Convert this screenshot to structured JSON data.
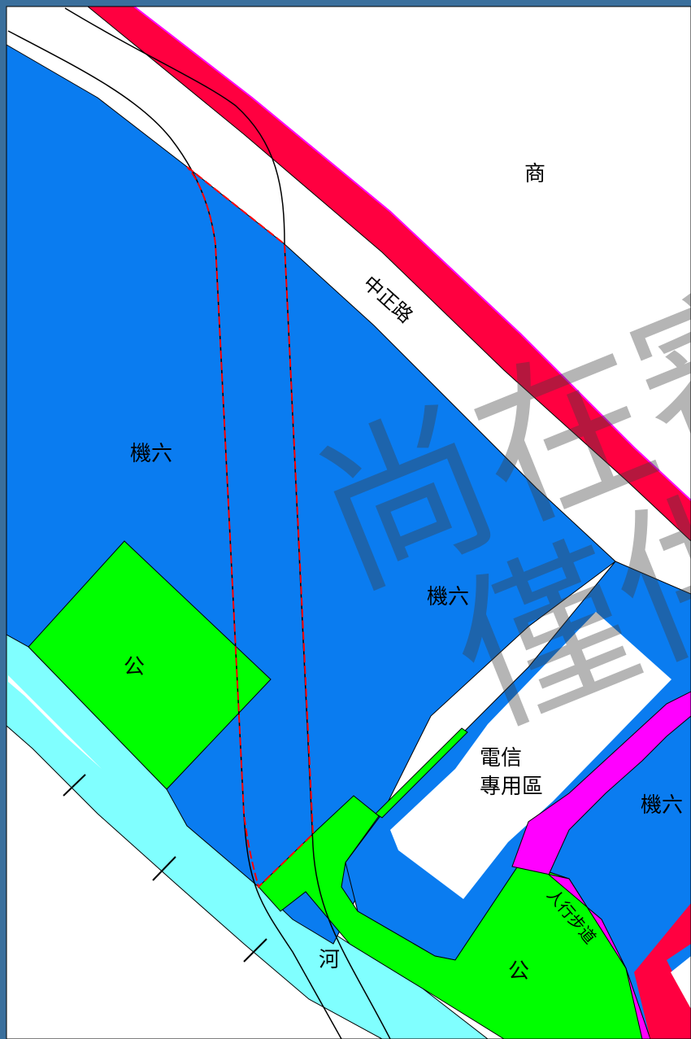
{
  "map": {
    "colors": {
      "frame": "#3a6f9c",
      "background": "#ffffff",
      "zone_blue": "#0a7cf0",
      "zone_green": "#00ff00",
      "river_cyan": "#80ffff",
      "road_red": "#ff0040",
      "walkway_magenta": "#ff00ff",
      "boundary_red_dashed": "#ff0000",
      "watermark": "#3c3c3c"
    },
    "labels": {
      "commercial": "商",
      "road_name": "中正路",
      "zone_left": "機六",
      "zone_center": "機六",
      "zone_right": "機六",
      "park_left": "公",
      "park_bottom": "公",
      "telecom_line1": "電信",
      "telecom_line2": "專用區",
      "walkway": "人行步道",
      "river": "河"
    },
    "watermark": {
      "line1": "尚在審",
      "line2": "僅供"
    }
  }
}
